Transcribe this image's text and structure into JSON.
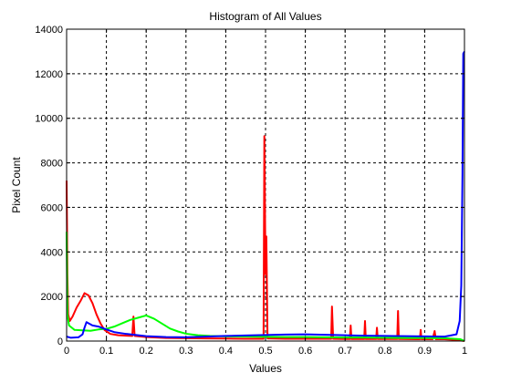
{
  "chart_data": {
    "type": "line",
    "title": "Histogram of All Values",
    "xlabel": "Values",
    "ylabel": "Pixel Count",
    "xlim": [
      0,
      1
    ],
    "ylim": [
      0,
      14000
    ],
    "grid": true,
    "grid_style": "dotted",
    "x_ticks": [
      0,
      0.1,
      0.2,
      0.3,
      0.4,
      0.5,
      0.6,
      0.7,
      0.8,
      0.9,
      1
    ],
    "x_tick_labels": [
      "0",
      "0.1",
      "0.2",
      "0.3",
      "0.4",
      "0.5",
      "0.6",
      "0.7",
      "0.8",
      "0.9",
      "1"
    ],
    "y_ticks": [
      0,
      2000,
      4000,
      6000,
      8000,
      10000,
      12000,
      14000
    ],
    "y_tick_labels": [
      "0",
      "2000",
      "4000",
      "6000",
      "8000",
      "10000",
      "12000",
      "14000"
    ],
    "series": [
      {
        "color": "#ff0000",
        "points": [
          [
            0.0,
            7200
          ],
          [
            0.002,
            3000
          ],
          [
            0.004,
            1200
          ],
          [
            0.008,
            900
          ],
          [
            0.015,
            1100
          ],
          [
            0.025,
            1500
          ],
          [
            0.035,
            1800
          ],
          [
            0.045,
            2150
          ],
          [
            0.055,
            2050
          ],
          [
            0.065,
            1700
          ],
          [
            0.075,
            1200
          ],
          [
            0.085,
            800
          ],
          [
            0.095,
            500
          ],
          [
            0.11,
            320
          ],
          [
            0.13,
            260
          ],
          [
            0.15,
            240
          ],
          [
            0.165,
            230
          ],
          [
            0.168,
            1100
          ],
          [
            0.171,
            230
          ],
          [
            0.2,
            180
          ],
          [
            0.25,
            140
          ],
          [
            0.3,
            130
          ],
          [
            0.35,
            120
          ],
          [
            0.4,
            110
          ],
          [
            0.45,
            100
          ],
          [
            0.495,
            100
          ],
          [
            0.497,
            9200
          ],
          [
            0.5,
            3000
          ],
          [
            0.502,
            4700
          ],
          [
            0.505,
            120
          ],
          [
            0.55,
            100
          ],
          [
            0.6,
            100
          ],
          [
            0.65,
            100
          ],
          [
            0.665,
            100
          ],
          [
            0.667,
            1550
          ],
          [
            0.67,
            100
          ],
          [
            0.7,
            90
          ],
          [
            0.712,
            90
          ],
          [
            0.714,
            700
          ],
          [
            0.716,
            90
          ],
          [
            0.748,
            90
          ],
          [
            0.75,
            900
          ],
          [
            0.752,
            90
          ],
          [
            0.778,
            90
          ],
          [
            0.78,
            600
          ],
          [
            0.782,
            90
          ],
          [
            0.831,
            90
          ],
          [
            0.833,
            1350
          ],
          [
            0.835,
            90
          ],
          [
            0.88,
            80
          ],
          [
            0.888,
            80
          ],
          [
            0.89,
            500
          ],
          [
            0.892,
            80
          ],
          [
            0.92,
            80
          ],
          [
            0.925,
            450
          ],
          [
            0.928,
            80
          ],
          [
            0.95,
            80
          ],
          [
            0.98,
            50
          ],
          [
            1.0,
            0
          ]
        ]
      },
      {
        "color": "#00ff00",
        "points": [
          [
            0.0,
            4900
          ],
          [
            0.002,
            1200
          ],
          [
            0.006,
            700
          ],
          [
            0.02,
            500
          ],
          [
            0.04,
            480
          ],
          [
            0.06,
            460
          ],
          [
            0.08,
            520
          ],
          [
            0.1,
            550
          ],
          [
            0.12,
            650
          ],
          [
            0.14,
            800
          ],
          [
            0.16,
            950
          ],
          [
            0.18,
            1050
          ],
          [
            0.2,
            1150
          ],
          [
            0.22,
            1000
          ],
          [
            0.24,
            780
          ],
          [
            0.26,
            560
          ],
          [
            0.28,
            430
          ],
          [
            0.3,
            330
          ],
          [
            0.33,
            260
          ],
          [
            0.36,
            230
          ],
          [
            0.4,
            210
          ],
          [
            0.45,
            200
          ],
          [
            0.5,
            190
          ],
          [
            0.55,
            180
          ],
          [
            0.6,
            180
          ],
          [
            0.65,
            170
          ],
          [
            0.7,
            160
          ],
          [
            0.75,
            160
          ],
          [
            0.8,
            150
          ],
          [
            0.85,
            140
          ],
          [
            0.9,
            140
          ],
          [
            0.95,
            130
          ],
          [
            0.99,
            80
          ],
          [
            1.0,
            0
          ]
        ]
      },
      {
        "color": "#0000ff",
        "points": [
          [
            0.0,
            200
          ],
          [
            0.01,
            150
          ],
          [
            0.02,
            160
          ],
          [
            0.03,
            170
          ],
          [
            0.04,
            300
          ],
          [
            0.045,
            600
          ],
          [
            0.05,
            850
          ],
          [
            0.055,
            800
          ],
          [
            0.065,
            700
          ],
          [
            0.08,
            650
          ],
          [
            0.1,
            520
          ],
          [
            0.12,
            400
          ],
          [
            0.15,
            320
          ],
          [
            0.18,
            260
          ],
          [
            0.2,
            220
          ],
          [
            0.25,
            180
          ],
          [
            0.3,
            170
          ],
          [
            0.35,
            200
          ],
          [
            0.4,
            230
          ],
          [
            0.45,
            250
          ],
          [
            0.5,
            270
          ],
          [
            0.55,
            290
          ],
          [
            0.6,
            300
          ],
          [
            0.65,
            280
          ],
          [
            0.7,
            260
          ],
          [
            0.75,
            240
          ],
          [
            0.8,
            230
          ],
          [
            0.85,
            220
          ],
          [
            0.9,
            210
          ],
          [
            0.95,
            200
          ],
          [
            0.98,
            300
          ],
          [
            0.988,
            900
          ],
          [
            0.992,
            2500
          ],
          [
            0.995,
            7500
          ],
          [
            0.997,
            12900
          ],
          [
            1.0,
            13000
          ]
        ]
      }
    ]
  }
}
